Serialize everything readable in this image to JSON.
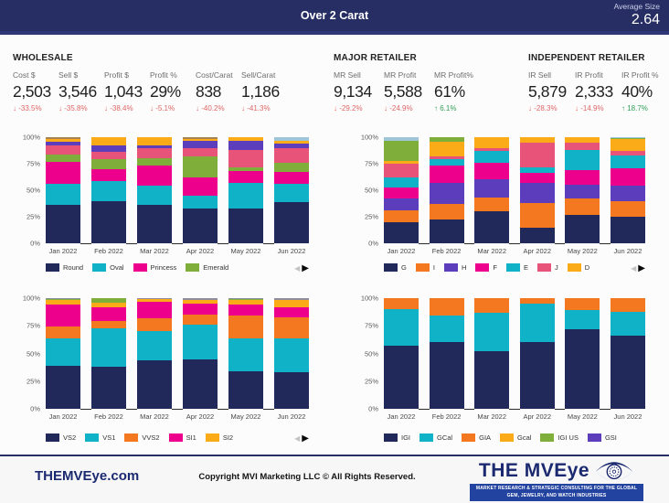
{
  "header": {
    "title": "Over 2 Carat",
    "average_size_label": "Average Size",
    "average_size_value": "2.64"
  },
  "theme": {
    "header_bg": "#262e63",
    "delta_down_color": "#e06666",
    "delta_up_color": "#2f9e55",
    "footer_accent": "#1b2a70"
  },
  "kpi_groups": [
    {
      "title": "WHOLESALE",
      "metrics": [
        {
          "label": "Cost $",
          "value": "2,503",
          "delta": "-33.5%",
          "dir": "down"
        },
        {
          "label": "Sell $",
          "value": "3,546",
          "delta": "-35.8%",
          "dir": "down"
        },
        {
          "label": "Profit $",
          "value": "1,043",
          "delta": "-38.4%",
          "dir": "down"
        },
        {
          "label": "Profit %",
          "value": "29%",
          "delta": "-5.1%",
          "dir": "down"
        },
        {
          "label": "Cost/Carat",
          "value": "838",
          "delta": "-40.2%",
          "dir": "down"
        },
        {
          "label": "Sell/Carat",
          "value": "1,186",
          "delta": "-41.3%",
          "dir": "down"
        }
      ]
    },
    {
      "title": "MAJOR RETAILER",
      "metrics": [
        {
          "label": "MR Sell",
          "value": "9,134",
          "delta": "-29.2%",
          "dir": "down"
        },
        {
          "label": "MR Profit",
          "value": "5,588",
          "delta": "-24.9%",
          "dir": "down"
        },
        {
          "label": "MR Profit%",
          "value": "61%",
          "delta": "6.1%",
          "dir": "up"
        }
      ]
    },
    {
      "title": "INDEPENDENT RETAILER",
      "metrics": [
        {
          "label": "IR Sell",
          "value": "5,879",
          "delta": "-28.3%",
          "dir": "down"
        },
        {
          "label": "IR Profit",
          "value": "2,333",
          "delta": "-14.9%",
          "dir": "down"
        },
        {
          "label": "IR Profit %",
          "value": "40%",
          "delta": "18.7%",
          "dir": "up"
        }
      ]
    }
  ],
  "chart_data": [
    {
      "type": "bar",
      "stacking": "percent",
      "title": "Shape mix by month",
      "categories": [
        "Jan 2022",
        "Feb 2022",
        "Mar 2022",
        "Apr 2022",
        "May 2022",
        "Jun 2022"
      ],
      "y_ticks": [
        "100%",
        "75%",
        "50%",
        "25%",
        "0%"
      ],
      "ylim": [
        0,
        100
      ],
      "arrows": true,
      "series": [
        {
          "name": "Round",
          "color": "#21295b",
          "in_legend": true,
          "values": [
            36,
            40,
            36,
            33,
            33,
            39
          ]
        },
        {
          "name": "Oval",
          "color": "#10b2c7",
          "in_legend": true,
          "values": [
            20,
            19,
            18,
            12,
            24,
            17
          ]
        },
        {
          "name": "Princess",
          "color": "#ec008c",
          "in_legend": true,
          "values": [
            21,
            11,
            19,
            17,
            11,
            11
          ]
        },
        {
          "name": "Emerald",
          "color": "#7fae3b",
          "in_legend": true,
          "values": [
            7,
            9,
            7,
            20,
            4,
            9
          ]
        },
        {
          "name": "unlabeled-rose",
          "color": "#e8537a",
          "in_legend": false,
          "values": [
            8,
            7,
            10,
            8,
            16,
            14
          ]
        },
        {
          "name": "unlabeled-purple",
          "color": "#5c3dbb",
          "in_legend": false,
          "values": [
            4,
            6,
            2,
            7,
            9,
            4
          ]
        },
        {
          "name": "unlabeled-orange",
          "color": "#fbab18",
          "in_legend": false,
          "values": [
            2,
            8,
            8,
            1,
            3,
            3
          ]
        },
        {
          "name": "unlabeled-brown",
          "color": "#a98254",
          "in_legend": false,
          "values": [
            2,
            0,
            0,
            2,
            0,
            0
          ]
        },
        {
          "name": "unlabeled-lightblue",
          "color": "#9fc6d8",
          "in_legend": false,
          "values": [
            0,
            0,
            0,
            0,
            0,
            3
          ]
        }
      ]
    },
    {
      "type": "bar",
      "stacking": "percent",
      "title": "Color grade mix by month",
      "categories": [
        "Jan 2022",
        "Feb 2022",
        "Mar 2022",
        "Apr 2022",
        "May 2022",
        "Jun 2022"
      ],
      "y_ticks": [
        "100%",
        "75%",
        "50%",
        "25%",
        "0%"
      ],
      "ylim": [
        0,
        100
      ],
      "arrows": true,
      "series": [
        {
          "name": "G",
          "color": "#21295b",
          "in_legend": true,
          "values": [
            20,
            22,
            30,
            15,
            27,
            25
          ]
        },
        {
          "name": "I",
          "color": "#f4781f",
          "in_legend": true,
          "values": [
            11,
            15,
            13,
            23,
            15,
            15
          ]
        },
        {
          "name": "H",
          "color": "#5c3dbb",
          "in_legend": true,
          "values": [
            11,
            20,
            17,
            19,
            13,
            14
          ]
        },
        {
          "name": "F",
          "color": "#ec008c",
          "in_legend": true,
          "values": [
            11,
            16,
            16,
            9,
            14,
            17
          ]
        },
        {
          "name": "E",
          "color": "#10b2c7",
          "in_legend": true,
          "values": [
            9,
            6,
            11,
            6,
            19,
            12
          ]
        },
        {
          "name": "J",
          "color": "#e8537a",
          "in_legend": true,
          "values": [
            13,
            3,
            3,
            23,
            7,
            4
          ]
        },
        {
          "name": "D",
          "color": "#fbab18",
          "in_legend": true,
          "values": [
            3,
            14,
            10,
            5,
            5,
            11
          ]
        },
        {
          "name": "unlabeled-green",
          "color": "#7fae3b",
          "in_legend": false,
          "values": [
            19,
            4,
            0,
            0,
            0,
            1
          ]
        },
        {
          "name": "unlabeled-lightblue",
          "color": "#9fc6d8",
          "in_legend": false,
          "values": [
            3,
            0,
            0,
            0,
            0,
            1
          ]
        }
      ]
    },
    {
      "type": "bar",
      "stacking": "percent",
      "title": "Clarity mix by month",
      "categories": [
        "Jan 2022",
        "Feb 2022",
        "Mar 2022",
        "Apr 2022",
        "May 2022",
        "Jun 2022"
      ],
      "y_ticks": [
        "100%",
        "75%",
        "50%",
        "25%",
        "0%"
      ],
      "ylim": [
        0,
        100
      ],
      "arrows": true,
      "series": [
        {
          "name": "VS2",
          "color": "#21295b",
          "in_legend": true,
          "values": [
            39,
            38,
            44,
            45,
            34,
            33
          ]
        },
        {
          "name": "VS1",
          "color": "#10b2c7",
          "in_legend": true,
          "values": [
            25,
            35,
            26,
            31,
            30,
            31
          ]
        },
        {
          "name": "VVS2",
          "color": "#f4781f",
          "in_legend": true,
          "values": [
            10,
            6,
            12,
            9,
            20,
            19
          ]
        },
        {
          "name": "SI1",
          "color": "#ec008c",
          "in_legend": true,
          "values": [
            20,
            13,
            15,
            10,
            10,
            9
          ]
        },
        {
          "name": "SI2",
          "color": "#fbab18",
          "in_legend": true,
          "values": [
            4,
            4,
            2,
            3,
            4,
            6
          ]
        },
        {
          "name": "unlabeled-green",
          "color": "#7fae3b",
          "in_legend": false,
          "values": [
            1,
            4,
            0,
            0,
            1,
            0
          ]
        },
        {
          "name": "unlabeled-gray",
          "color": "#8d8d9e",
          "in_legend": false,
          "values": [
            1,
            0,
            1,
            2,
            1,
            2
          ]
        }
      ]
    },
    {
      "type": "bar",
      "stacking": "percent",
      "title": "Grading lab mix by month",
      "categories": [
        "Jan 2022",
        "Feb 2022",
        "Mar 2022",
        "Apr 2022",
        "May 2022",
        "Jun 2022"
      ],
      "y_ticks": [
        "100%",
        "75%",
        "50%",
        "25%",
        "0%"
      ],
      "ylim": [
        0,
        100
      ],
      "arrows": false,
      "series": [
        {
          "name": "IGI",
          "color": "#21295b",
          "in_legend": true,
          "values": [
            57,
            60,
            52,
            60,
            72,
            66
          ]
        },
        {
          "name": "GCal",
          "color": "#10b2c7",
          "in_legend": true,
          "values": [
            33,
            24,
            35,
            35,
            17,
            22
          ]
        },
        {
          "name": "GIA",
          "color": "#f4781f",
          "in_legend": true,
          "values": [
            10,
            16,
            13,
            5,
            11,
            12
          ]
        },
        {
          "name": "Gcal",
          "color": "#fbab18",
          "in_legend": true,
          "values": [
            0,
            0,
            0,
            0,
            0,
            0
          ]
        },
        {
          "name": "IGI US",
          "color": "#7fae3b",
          "in_legend": true,
          "values": [
            0,
            0,
            0,
            0,
            0,
            0
          ]
        },
        {
          "name": "GSI",
          "color": "#5c3dbb",
          "in_legend": true,
          "values": [
            0,
            0,
            0,
            0,
            0,
            0
          ]
        }
      ]
    }
  ],
  "footer": {
    "site": "THEMVEye.com",
    "copyright": "Copyright MVI Marketing LLC © All Rights Reserved.",
    "logo_title": "THE MVEye",
    "logo_tagline": "MARKET RESEARCH & STRATEGIC CONSULTING FOR THE GLOBAL GEM, JEWELRY, AND WATCH INDUSTRIES"
  }
}
